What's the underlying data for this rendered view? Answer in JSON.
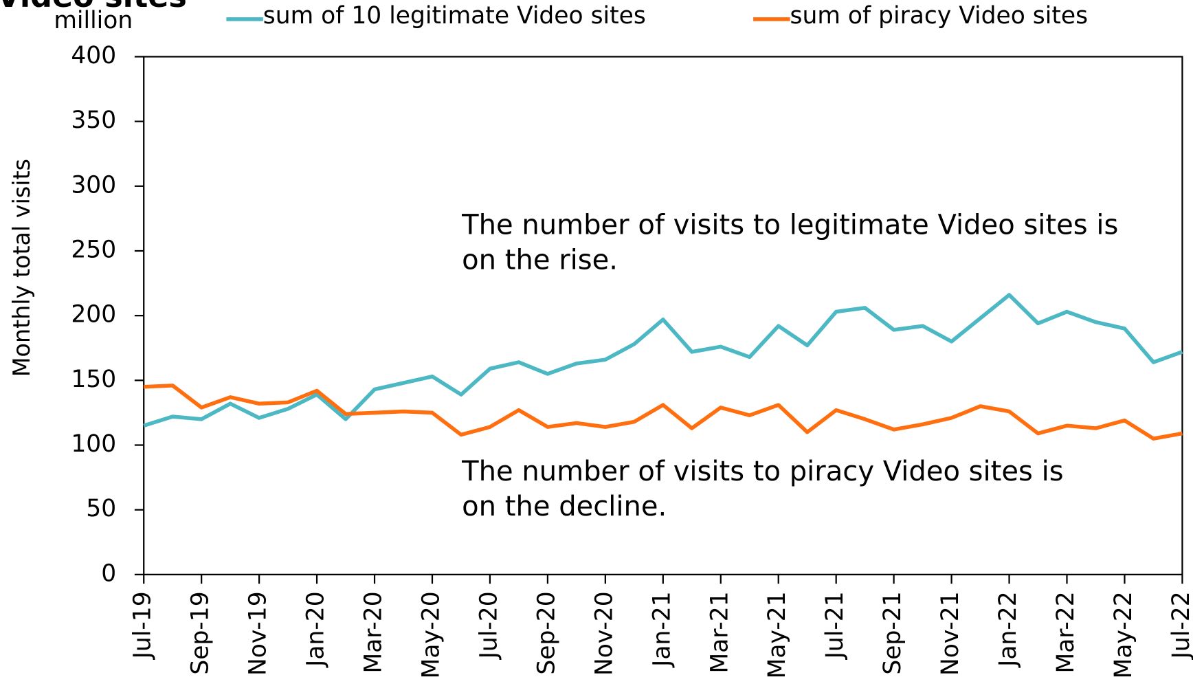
{
  "chart_data": {
    "type": "line",
    "title": "Video sites",
    "unit_label": "million",
    "ylabel": "Monthly total visits",
    "categories": [
      "Jul-19",
      null,
      "Sep-19",
      null,
      "Nov-19",
      null,
      "Jan-20",
      null,
      "Mar-20",
      null,
      "May-20",
      null,
      "Jul-20",
      null,
      "Sep-20",
      null,
      "Nov-20",
      null,
      "Jan-21",
      null,
      "Mar-21",
      null,
      "May-21",
      null,
      "Jul-21",
      null,
      "Sep-21",
      null,
      "Nov-21",
      null,
      "Jan-22",
      null,
      "Mar-22",
      null,
      "May-22",
      null,
      "Jul-22"
    ],
    "series": [
      {
        "name": "sum of 10 legitimate Video sites",
        "color": "#4bb8c4",
        "values": [
          115,
          122,
          120,
          132,
          121,
          128,
          139,
          120,
          143,
          148,
          153,
          139,
          159,
          164,
          155,
          163,
          166,
          178,
          197,
          172,
          176,
          168,
          192,
          177,
          203,
          206,
          189,
          192,
          180,
          198,
          216,
          194,
          203,
          195,
          190,
          164,
          172
        ]
      },
      {
        "name": "sum of piracy Video sites",
        "color": "#ff6f0f",
        "values": [
          145,
          146,
          129,
          137,
          132,
          133,
          142,
          124,
          125,
          126,
          125,
          108,
          114,
          127,
          114,
          117,
          114,
          118,
          131,
          113,
          129,
          123,
          131,
          110,
          127,
          120,
          112,
          116,
          121,
          130,
          126,
          109,
          115,
          113,
          119,
          105,
          109
        ]
      }
    ],
    "ylim": [
      0,
      400
    ],
    "yticks": [
      0,
      50,
      100,
      150,
      200,
      250,
      300,
      350,
      400
    ],
    "annotations": [
      [
        "The number of visits to legitimate Video sites is",
        "on the rise."
      ],
      [
        "The number of visits to piracy Video sites is",
        "on the decline."
      ]
    ]
  }
}
